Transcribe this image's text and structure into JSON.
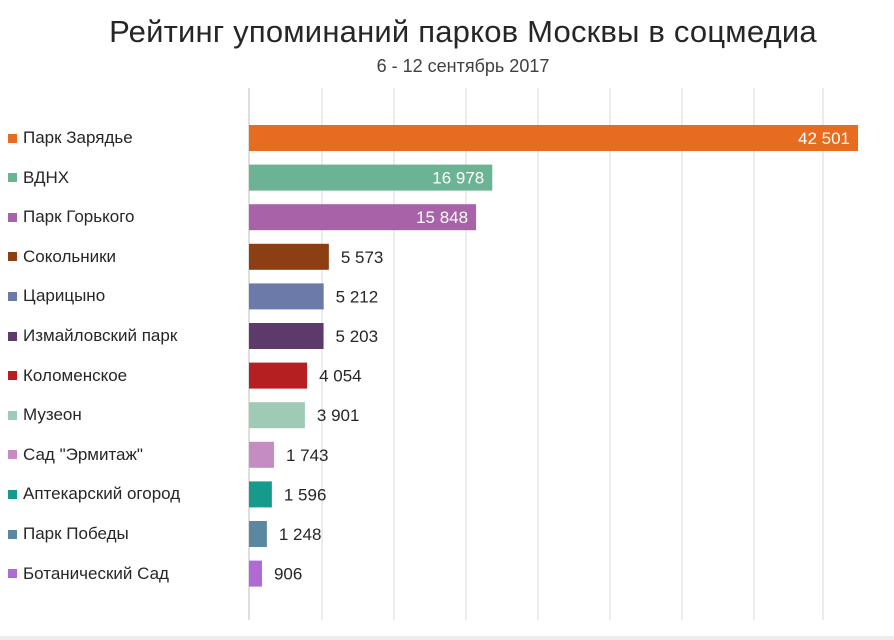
{
  "chart_data": {
    "type": "bar",
    "orientation": "horizontal",
    "title": "Рейтинг упоминаний парков Москвы в соцмедиа",
    "subtitle": "6 - 12 сентябрь 2017",
    "xlim": [
      0,
      42501
    ],
    "grid": true,
    "legend_position": "left",
    "categories": [
      "Парк Зарядье",
      "ВДНХ",
      "Парк Горького",
      "Сокольники",
      "Царицыно",
      "Измайловский парк",
      "Коломенское",
      "Музеон",
      "Сад \"Эрмитаж\"",
      "Аптекарский огород",
      "Парк Победы",
      "Ботанический Сад"
    ],
    "values": [
      42501,
      16978,
      15848,
      5573,
      5212,
      5203,
      4054,
      3901,
      1743,
      1596,
      1248,
      906
    ],
    "value_labels": [
      "42 501",
      "16 978",
      "15 848",
      "5 573",
      "5 212",
      "5 203",
      "4 054",
      "3 901",
      "1 743",
      "1 596",
      "1 248",
      "906"
    ],
    "label_inside": [
      true,
      true,
      true,
      false,
      false,
      false,
      false,
      false,
      false,
      false,
      false,
      false
    ],
    "colors": [
      "#e86c1f",
      "#6cb394",
      "#a862a8",
      "#8b3f12",
      "#6b7aa8",
      "#5c3a6a",
      "#b51f22",
      "#9fcab5",
      "#c48cc0",
      "#159a8c",
      "#5b88a0",
      "#b06ad4"
    ]
  }
}
